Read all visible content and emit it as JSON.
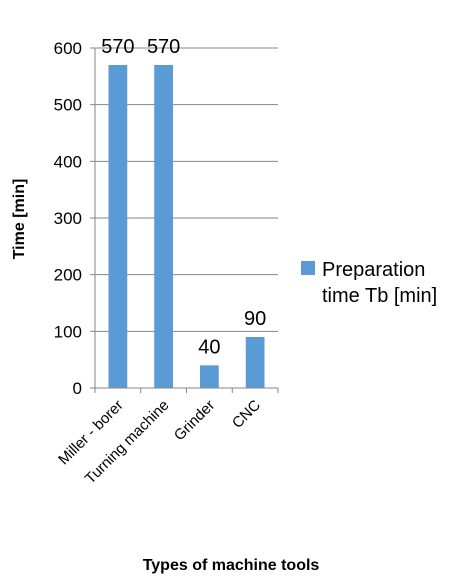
{
  "chart_data": {
    "type": "bar",
    "title": "",
    "xlabel": "Types of machine tools",
    "ylabel": "Time [min]",
    "categories": [
      "Miller - borer",
      "Turning machine",
      "Grinder",
      "CNC"
    ],
    "series": [
      {
        "name": "Preparation time Tb [min]",
        "values": [
          570,
          570,
          40,
          90
        ],
        "color": "#5b9bd5"
      }
    ],
    "ylim": [
      0,
      600
    ],
    "yticks": [
      0,
      100,
      200,
      300,
      400,
      500,
      600
    ],
    "ytick_labels": [
      "0",
      "100",
      "200",
      "300",
      "400",
      "500",
      "600"
    ],
    "data_labels": [
      "570",
      "570",
      "40",
      "90"
    ],
    "grid": true,
    "legend": {
      "position": "right",
      "entries": [
        "Preparation",
        "time Tb [min]"
      ]
    }
  }
}
